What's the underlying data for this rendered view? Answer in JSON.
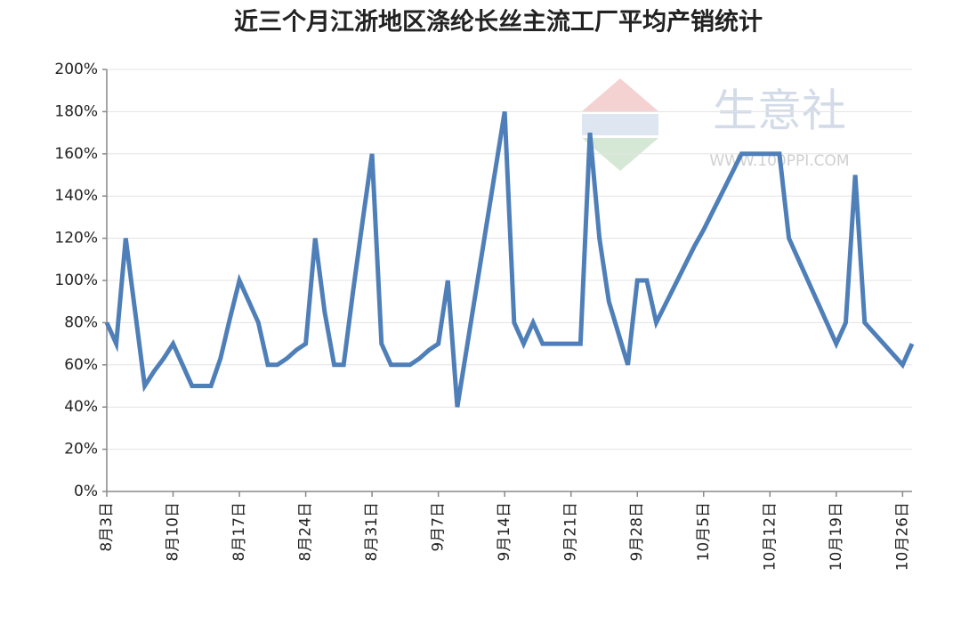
{
  "chart_data": {
    "type": "line",
    "title": "近三个月江浙地区涤纶长丝主流工厂平均产销统计",
    "watermark": "生意社",
    "watermark_url": "WWW.100PPI.COM",
    "categories": [
      "8月3日",
      null,
      null,
      null,
      null,
      null,
      null,
      "8月10日",
      null,
      null,
      null,
      null,
      null,
      null,
      "8月17日",
      null,
      null,
      null,
      null,
      null,
      null,
      "8月24日",
      null,
      null,
      null,
      null,
      null,
      null,
      "8月31日",
      null,
      null,
      null,
      null,
      null,
      null,
      "9月7日",
      null,
      null,
      null,
      null,
      null,
      null,
      "9月14日",
      null,
      null,
      null,
      null,
      null,
      null,
      "9月21日",
      null,
      null,
      null,
      null,
      null,
      null,
      "9月28日",
      null,
      null,
      null,
      null,
      null,
      null,
      "10月5日",
      null,
      null,
      null,
      null,
      null,
      null,
      "10月12日",
      null,
      null,
      null,
      null,
      null,
      null,
      "10月19日",
      null,
      null,
      null,
      null,
      null,
      null,
      "10月26日",
      null
    ],
    "values": [
      80,
      70,
      120,
      85,
      50,
      57,
      63,
      70,
      60,
      50,
      50,
      50,
      63,
      82,
      100,
      90,
      80,
      60,
      60,
      63,
      67,
      70,
      120,
      85,
      60,
      60,
      95,
      128,
      160,
      70,
      60,
      60,
      60,
      63,
      67,
      70,
      100,
      40,
      68,
      96,
      124,
      152,
      180,
      80,
      70,
      80,
      70,
      70,
      70,
      70,
      70,
      170,
      120,
      90,
      75,
      60,
      100,
      100,
      80,
      89,
      98,
      107,
      116,
      124,
      133,
      142,
      151,
      160,
      160,
      160,
      160,
      160,
      120,
      110,
      100,
      90,
      80,
      70,
      80,
      150,
      80,
      75,
      70,
      65,
      60,
      70
    ],
    "color": "#4f7fb8",
    "ylim": [
      0,
      200
    ],
    "yticks": [
      {
        "value": 0,
        "label": "0%"
      },
      {
        "value": 20,
        "label": "20%"
      },
      {
        "value": 40,
        "label": "40%"
      },
      {
        "value": 60,
        "label": "60%"
      },
      {
        "value": 80,
        "label": "80%"
      },
      {
        "value": 100,
        "label": "100%"
      },
      {
        "value": 120,
        "label": "120%"
      },
      {
        "value": 140,
        "label": "140%"
      },
      {
        "value": 160,
        "label": "160%"
      },
      {
        "value": 180,
        "label": "180%"
      },
      {
        "value": 200,
        "label": "200%"
      }
    ],
    "grid": true
  }
}
